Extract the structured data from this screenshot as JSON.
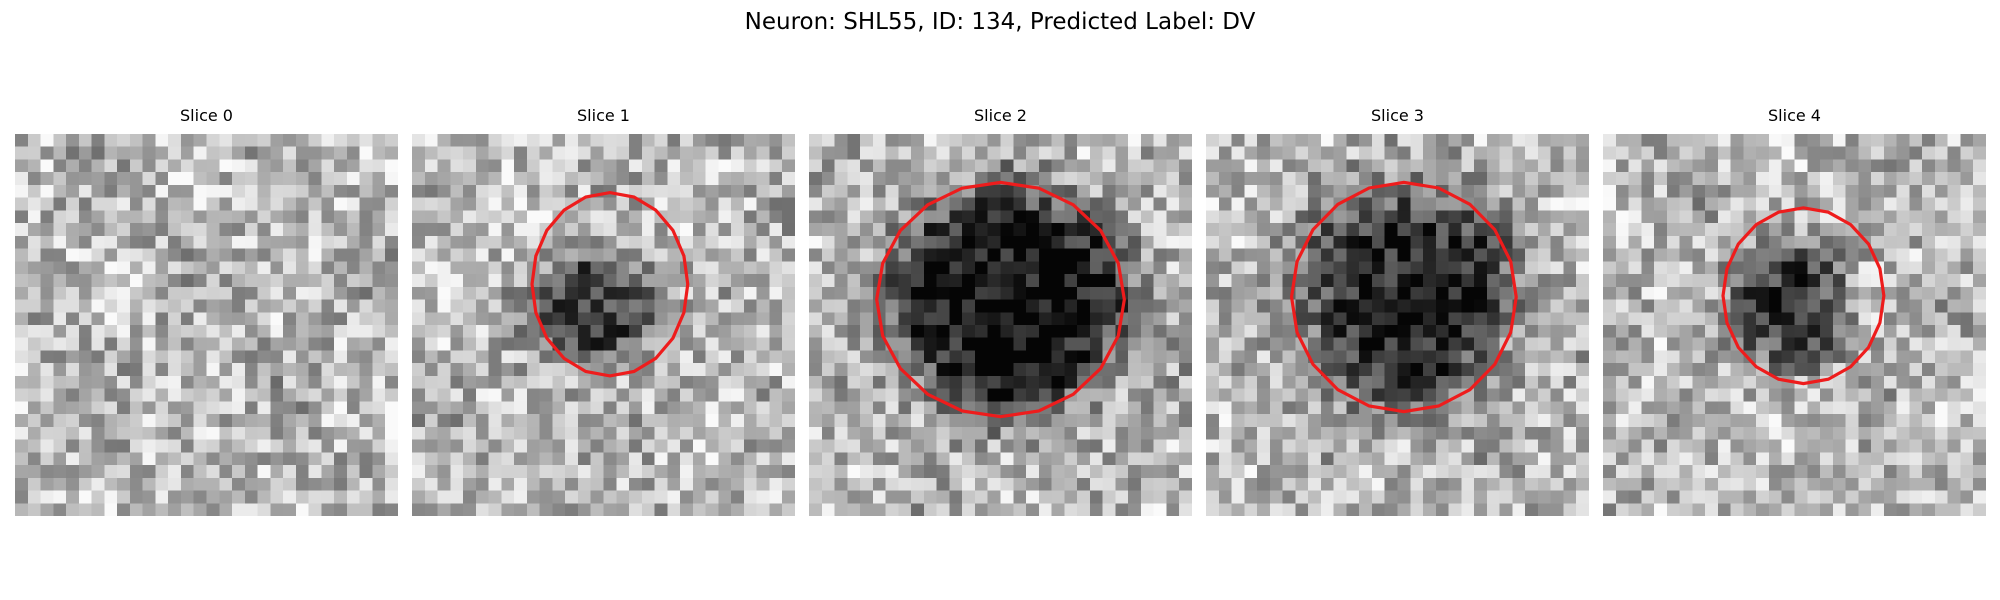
{
  "figure": {
    "title": "Neuron: SHL55, ID: 134, Predicted Label: DV",
    "grid_size": 30,
    "outline_color": "#ee1c1c",
    "panels": [
      {
        "title": "Slice 0",
        "blob": null,
        "contour": null,
        "seed": 11
      },
      {
        "title": "Slice 1",
        "blob": {
          "cx": 14.2,
          "cy": 13.8,
          "rx": 4.6,
          "ry": 4.0,
          "dark": 0.55
        },
        "contour": {
          "cx": 15.5,
          "cy": 11.8,
          "rx": 6.1,
          "ry": 7.2
        },
        "seed": 23
      },
      {
        "title": "Slice 2",
        "blob": {
          "cx": 15.8,
          "cy": 13.2,
          "rx": 8.8,
          "ry": 8.4,
          "dark": 0.72
        },
        "contour": {
          "cx": 15.0,
          "cy": 13.0,
          "rx": 9.7,
          "ry": 9.2
        },
        "seed": 37
      },
      {
        "title": "Slice 3",
        "blob": {
          "cx": 15.6,
          "cy": 12.6,
          "rx": 8.0,
          "ry": 8.2,
          "dark": 0.6
        },
        "contour": {
          "cx": 15.5,
          "cy": 12.8,
          "rx": 8.8,
          "ry": 9.0
        },
        "seed": 51
      },
      {
        "title": "Slice 4",
        "blob": {
          "cx": 14.6,
          "cy": 13.4,
          "rx": 4.8,
          "ry": 5.0,
          "dark": 0.45
        },
        "contour": {
          "cx": 15.7,
          "cy": 12.7,
          "rx": 6.3,
          "ry": 6.9
        },
        "seed": 67
      }
    ]
  }
}
